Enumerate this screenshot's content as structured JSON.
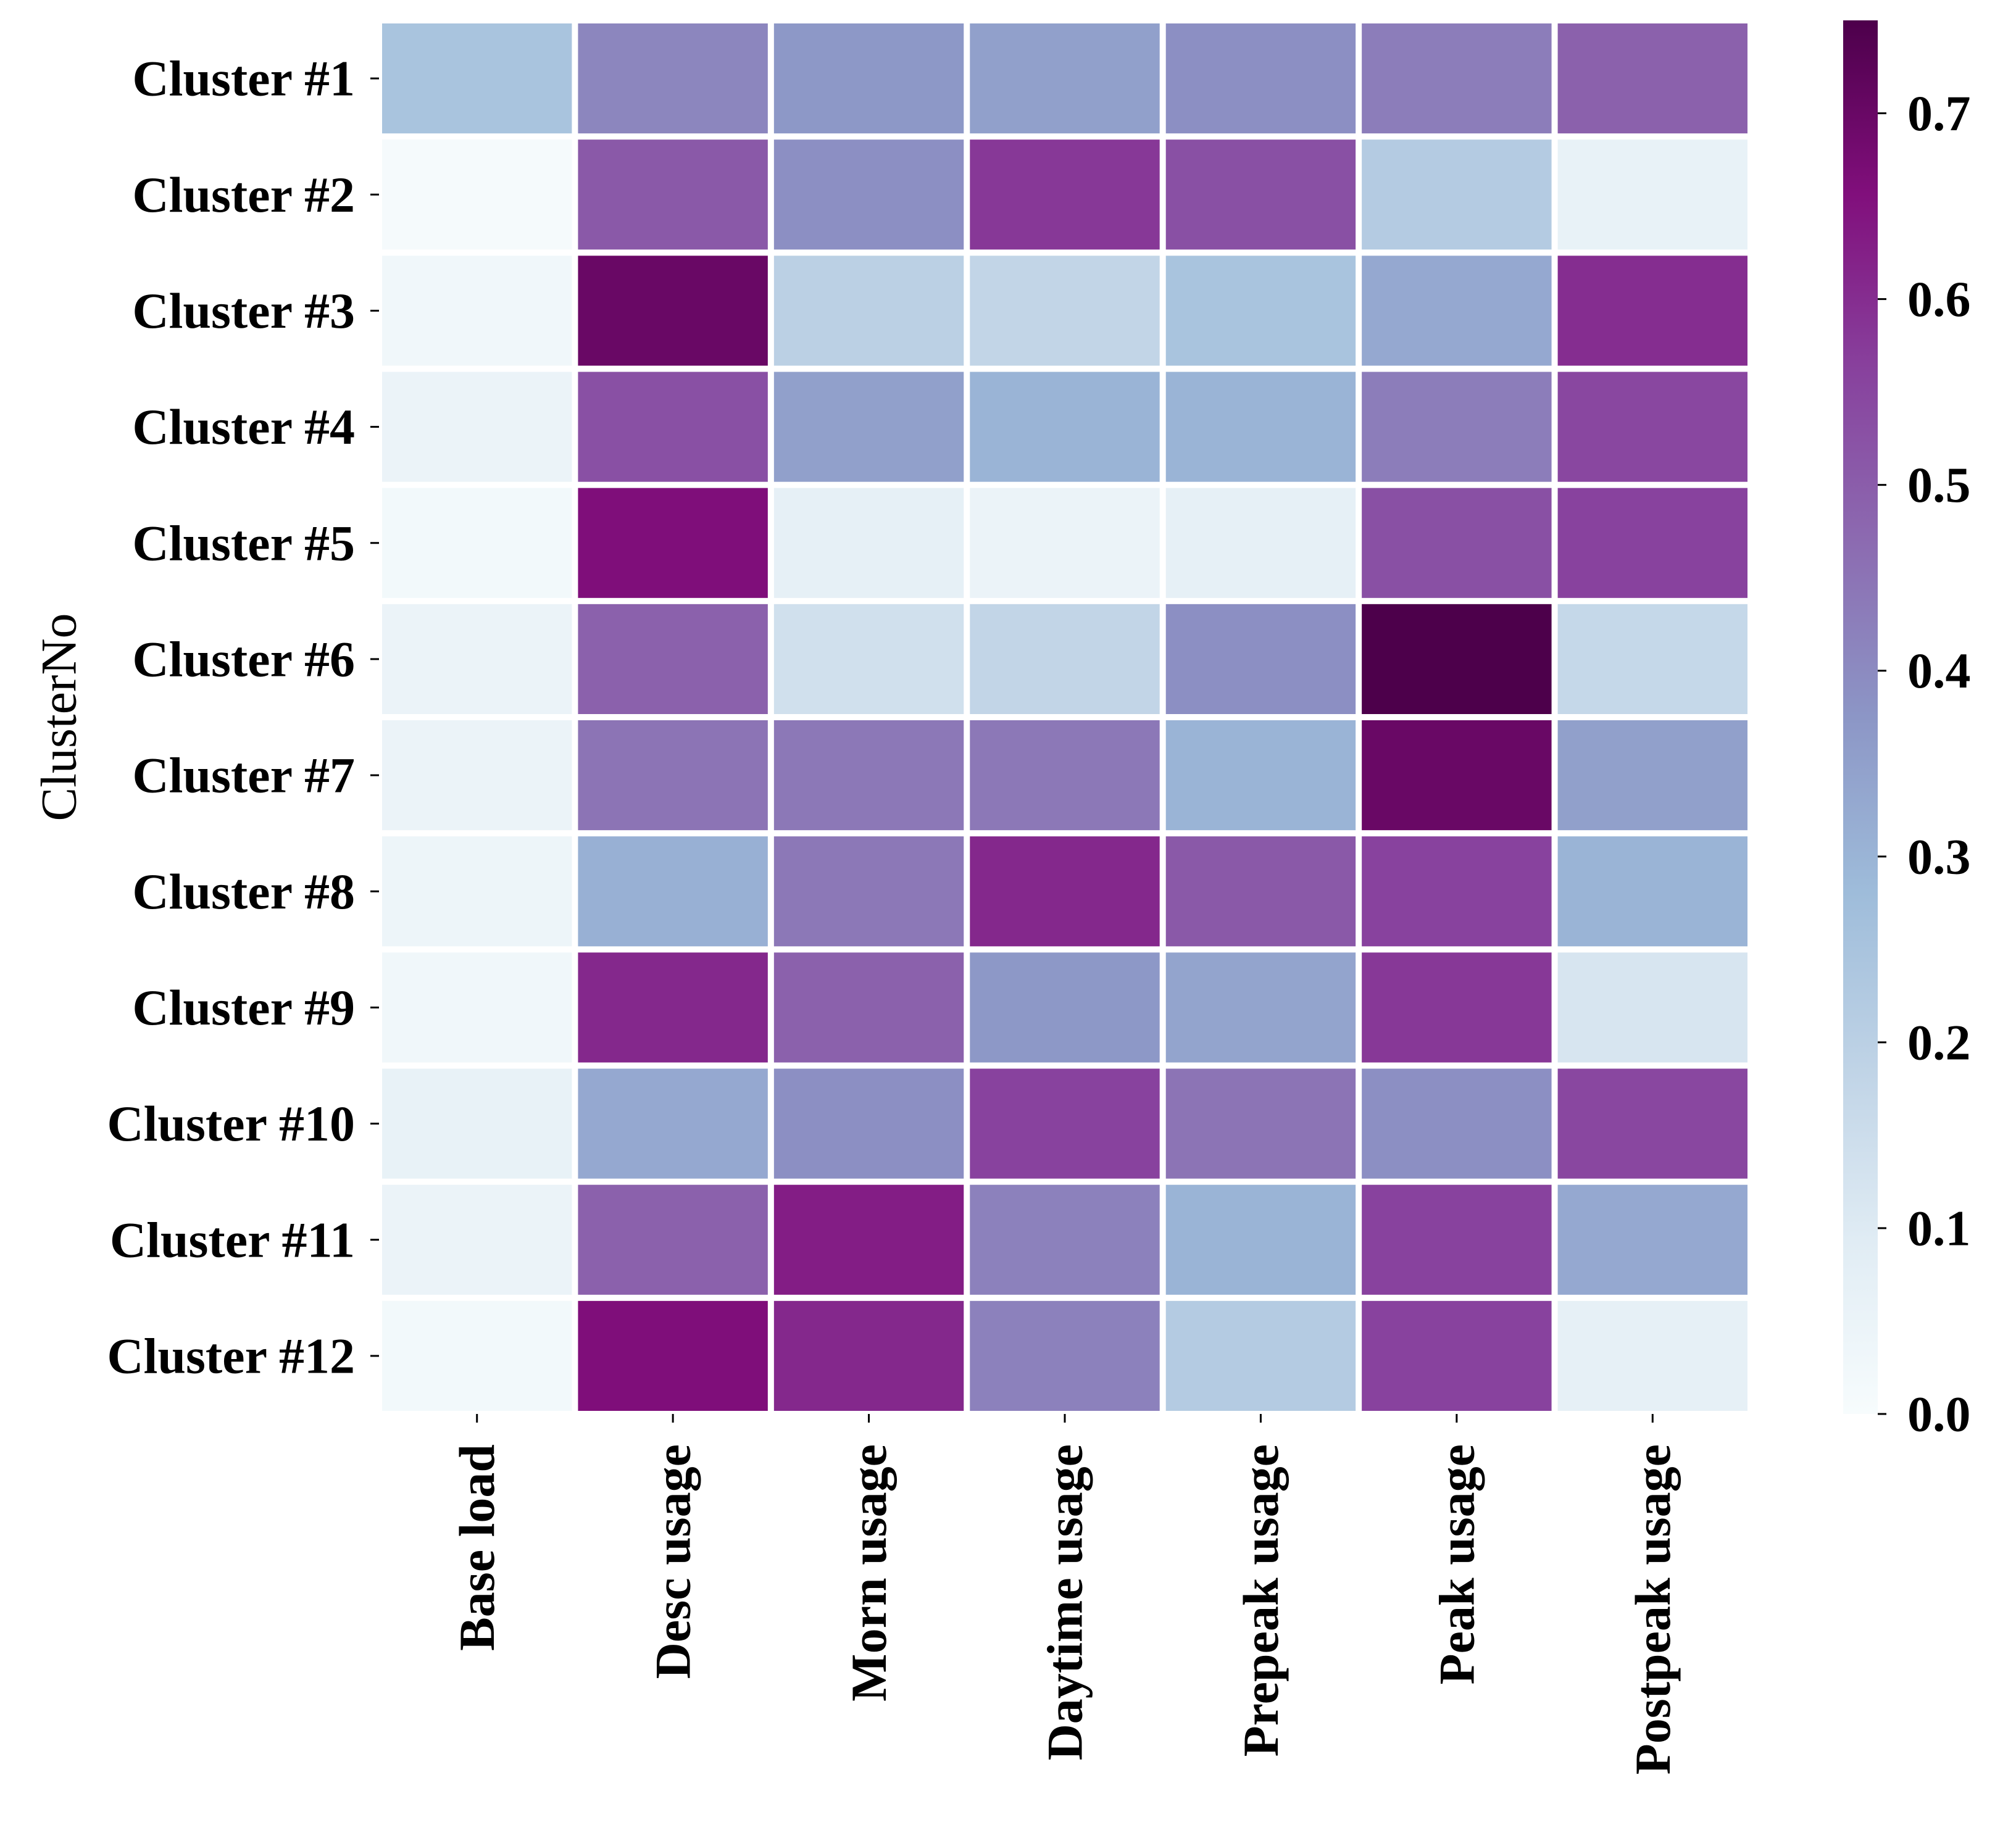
{
  "chart_data": {
    "type": "heatmap",
    "title": "",
    "xlabel": "",
    "ylabel": "ClusterNo",
    "rows": [
      "Cluster #1",
      "Cluster #2",
      "Cluster #3",
      "Cluster #4",
      "Cluster #5",
      "Cluster #6",
      "Cluster #7",
      "Cluster #8",
      "Cluster #9",
      "Cluster #10",
      "Cluster #11",
      "Cluster #12"
    ],
    "columns": [
      "Base load",
      "Desc usage",
      "Morn usage",
      "Daytime usage",
      "Prepeak usage",
      "Peak usage",
      "Postpeak usage"
    ],
    "values": [
      [
        0.25,
        0.41,
        0.37,
        0.35,
        0.39,
        0.43,
        0.49
      ],
      [
        0.01,
        0.51,
        0.39,
        0.58,
        0.53,
        0.22,
        0.06
      ],
      [
        0.03,
        0.7,
        0.2,
        0.18,
        0.25,
        0.33,
        0.6
      ],
      [
        0.05,
        0.53,
        0.35,
        0.3,
        0.3,
        0.43,
        0.55
      ],
      [
        0.02,
        0.66,
        0.07,
        0.05,
        0.07,
        0.53,
        0.56
      ],
      [
        0.05,
        0.49,
        0.14,
        0.18,
        0.39,
        0.75,
        0.17
      ],
      [
        0.05,
        0.45,
        0.44,
        0.44,
        0.3,
        0.7,
        0.35
      ],
      [
        0.04,
        0.31,
        0.44,
        0.61,
        0.51,
        0.56,
        0.3
      ],
      [
        0.03,
        0.61,
        0.49,
        0.37,
        0.34,
        0.58,
        0.12
      ],
      [
        0.06,
        0.33,
        0.39,
        0.56,
        0.45,
        0.39,
        0.55
      ],
      [
        0.05,
        0.49,
        0.63,
        0.42,
        0.3,
        0.56,
        0.33
      ],
      [
        0.02,
        0.66,
        0.61,
        0.42,
        0.22,
        0.56,
        0.07
      ]
    ],
    "colormap": "BuPu",
    "colorbar": {
      "range": [
        0.0,
        0.75
      ],
      "ticks": [
        "0.0",
        "0.1",
        "0.2",
        "0.3",
        "0.4",
        "0.5",
        "0.6",
        "0.7"
      ]
    },
    "grid": false,
    "cell_border_color": "#ffffff"
  }
}
